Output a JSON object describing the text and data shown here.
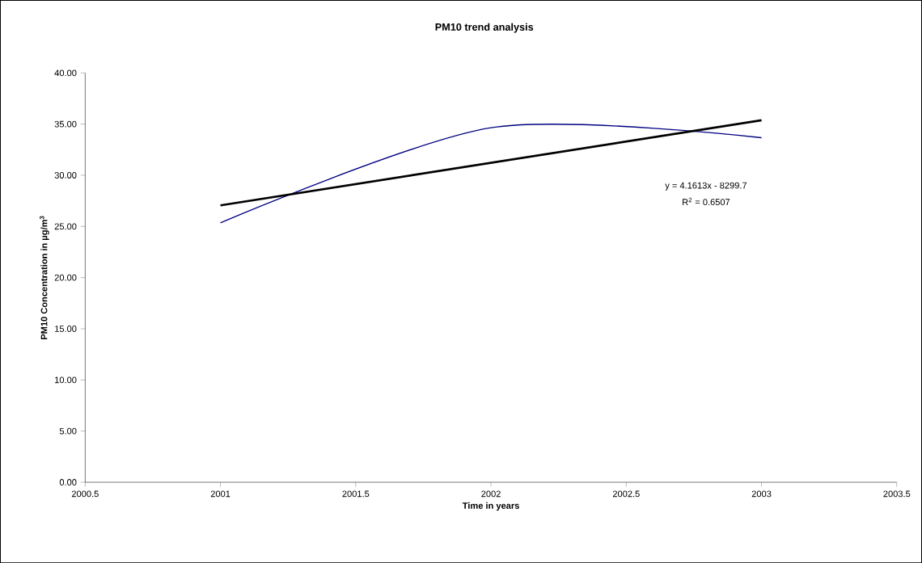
{
  "chart_data": {
    "type": "line",
    "title": "PM10 trend analysis",
    "xlabel": "Time in years",
    "ylabel": "PM10 Concentration in µg/m$^{3}$",
    "x": [
      2001,
      2002,
      2003
    ],
    "series": [
      {
        "color": "#000080",
        "values": [
          25.35,
          34.64,
          33.67
        ]
      },
      {
        "type": "line",
        "color": "#000000",
        "x": [
          2001,
          2003
        ],
        "values": [
          27.06,
          35.38
        ]
      }
    ],
    "xlim": [
      2000.5,
      2003.5
    ],
    "xticks": [
      2000.5,
      2001,
      2001.5,
      2002,
      2002.5,
      2003,
      2003.5
    ],
    "ylim": [
      0,
      40
    ],
    "yticks": [
      {
        "value": 0,
        "label": "0.00"
      },
      {
        "value": 5,
        "label": "5.00"
      },
      {
        "value": 10,
        "label": "10.00"
      },
      {
        "value": 15,
        "label": "15.00"
      },
      {
        "value": 20,
        "label": "20.00"
      },
      {
        "value": 25,
        "label": "25.00"
      },
      {
        "value": 30,
        "label": "30.00"
      },
      {
        "value": 35,
        "label": "35.00"
      },
      {
        "value": 40,
        "label": "40.00"
      }
    ],
    "annotations": [
      "y = 4.1613x - 8299.7",
      "R$^{2}$ = 0.6507"
    ],
    "grid": false
  }
}
